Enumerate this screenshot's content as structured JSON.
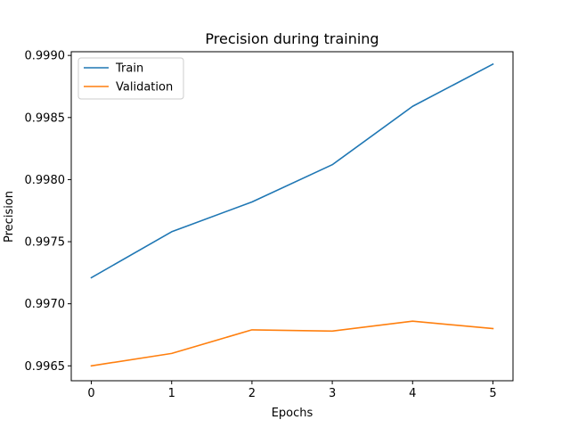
{
  "chart_data": {
    "type": "line",
    "title": "Precision during training",
    "xlabel": "Epochs",
    "ylabel": "Precision",
    "x": [
      0,
      1,
      2,
      3,
      4,
      5
    ],
    "xlim": [
      -0.25,
      5.25
    ],
    "ylim": [
      0.99638,
      0.99903
    ],
    "xticks": [
      0,
      1,
      2,
      3,
      4,
      5
    ],
    "xtick_labels": [
      "0",
      "1",
      "2",
      "3",
      "4",
      "5"
    ],
    "yticks": [
      0.9965,
      0.997,
      0.9975,
      0.998,
      0.9985,
      0.999
    ],
    "ytick_labels": [
      "0.9965",
      "0.9970",
      "0.9975",
      "0.9980",
      "0.9985",
      "0.9990"
    ],
    "grid": false,
    "legend_position": "top-left",
    "series": [
      {
        "name": "Train",
        "color": "#1f77b4",
        "values": [
          0.99721,
          0.99758,
          0.99782,
          0.99812,
          0.99859,
          0.99893
        ]
      },
      {
        "name": "Validation",
        "color": "#ff7f0e",
        "values": [
          0.9965,
          0.9966,
          0.99679,
          0.99678,
          0.99686,
          0.9968
        ]
      }
    ]
  }
}
